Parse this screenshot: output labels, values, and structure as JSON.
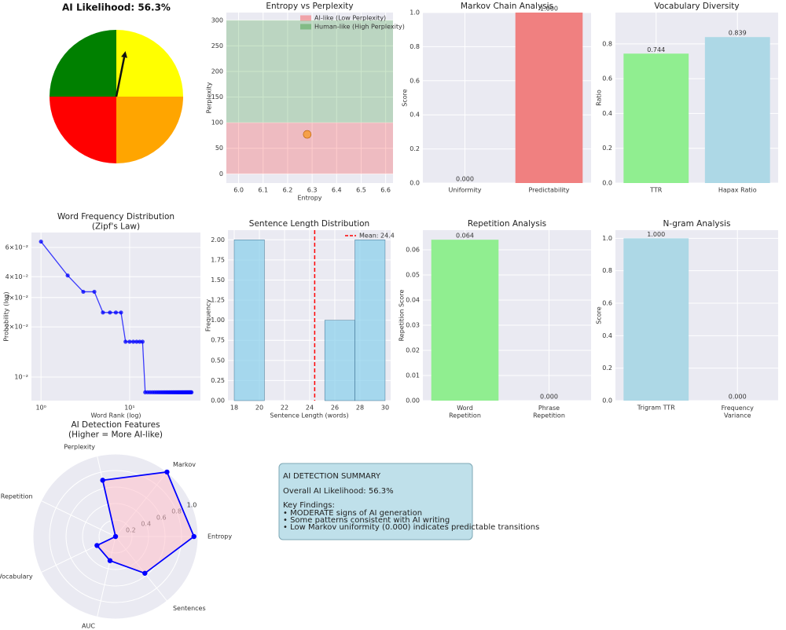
{
  "chart_data": [
    {
      "type": "gauge",
      "title": "AI Likelihood: 56.3%",
      "needle_value": 56.3,
      "range": [
        0,
        100
      ],
      "segments": {
        "values": [
          25,
          25,
          25,
          25
        ],
        "colors": [
          "yellow",
          "orange",
          "red",
          "green"
        ]
      }
    },
    {
      "type": "scatter",
      "title": "Entropy vs Perplexity",
      "x_label": "Entropy",
      "y_label": "Perplexity",
      "x": [
        6.28
      ],
      "values": [
        77
      ],
      "color": "#f5a04a",
      "bands": [
        {
          "name": "AI-like (Low Perplexity)",
          "range": [
            0,
            100
          ],
          "color": "red"
        },
        {
          "name": "Human-like (High Perplexity)",
          "range": [
            100,
            300
          ],
          "color": "green"
        }
      ],
      "xlim": [
        5.95,
        6.63
      ],
      "ylim": [
        -18,
        315
      ],
      "xticks": [
        {
          "value": 6,
          "label": "6.0"
        },
        6.1,
        6.2,
        6.3,
        6.4,
        6.5,
        6.6
      ],
      "yticks": [
        0,
        50,
        100,
        150,
        200,
        250,
        300
      ],
      "legend": "upper right",
      "grid": true
    },
    {
      "type": "bar",
      "title": "Markov Chain Analysis",
      "y_label": "Score",
      "categories": [
        "Uniformity",
        "Predictability"
      ],
      "values": [
        0,
        1
      ],
      "value_labels": [
        "0.000",
        "1.000"
      ],
      "colors": [
        "lightblue",
        "lightcoral"
      ],
      "ylim": [
        0,
        1
      ],
      "yticks": [
        {
          "value": 0,
          "label": "0.0"
        },
        0.2,
        0.4,
        0.6,
        0.8,
        {
          "value": 1,
          "label": "1.0"
        }
      ],
      "grid": true
    },
    {
      "type": "bar",
      "title": "Vocabulary Diversity",
      "y_label": "Ratio",
      "categories": [
        "TTR",
        "Hapax Ratio"
      ],
      "values": [
        0.744,
        0.839
      ],
      "colors": [
        "lightgreen",
        "lightblue"
      ],
      "ylim": [
        0,
        0.98
      ],
      "yticks": [
        {
          "value": 0,
          "label": "0.0"
        },
        0.2,
        0.4,
        0.6,
        0.8
      ],
      "grid": true
    },
    {
      "type": "line",
      "title": "Word Frequency Distribution\n(Zipf's Law)",
      "x_label": "Word Rank (log)",
      "y_label": "Probability (log)",
      "x": [
        1,
        2,
        3,
        4,
        5,
        6,
        7,
        8,
        9,
        10,
        11,
        12,
        13,
        14,
        15,
        16,
        17,
        18,
        19,
        20,
        21,
        22,
        23,
        24,
        25,
        26,
        27,
        28,
        29,
        30,
        31,
        32,
        33,
        34,
        35,
        36,
        37,
        38,
        39,
        40,
        41,
        42,
        43,
        44,
        45,
        46,
        47,
        48,
        49,
        50
      ],
      "values": [
        0.065,
        0.0407,
        0.0325,
        0.0325,
        0.0244,
        0.0244,
        0.0244,
        0.0244,
        0.0163,
        0.0163,
        0.0163,
        0.0163,
        0.0163,
        0.0163,
        0.0081,
        0.0081,
        0.0081,
        0.0081,
        0.0081,
        0.0081,
        0.0081,
        0.0081,
        0.0081,
        0.0081,
        0.0081,
        0.0081,
        0.0081,
        0.0081,
        0.0081,
        0.0081,
        0.0081,
        0.0081,
        0.0081,
        0.0081,
        0.0081,
        0.0081,
        0.0081,
        0.0081,
        0.0081,
        0.0081,
        0.0081,
        0.0081,
        0.0081,
        0.0081,
        0.0081,
        0.0081,
        0.0081,
        0.0081,
        0.0081,
        0.0081
      ],
      "color": "blue",
      "log_x": true,
      "log_y": true,
      "xlim": [
        0.78,
        63
      ],
      "ylim": [
        0.00722,
        0.0737
      ],
      "xticks": [
        {
          "value": 1,
          "label": "10⁰"
        },
        {
          "value": 10,
          "label": "10¹"
        }
      ],
      "yticks": [
        {
          "value": 0.01,
          "label": "10⁻²"
        },
        {
          "value": 0.02,
          "label": "2×10⁻²"
        },
        {
          "value": 0.03,
          "label": "3×10⁻²"
        },
        {
          "value": 0.04,
          "label": "4×10⁻²"
        },
        {
          "value": 0.06,
          "label": "6×10⁻²"
        }
      ],
      "grid": true
    },
    {
      "type": "histogram",
      "title": "Sentence Length Distribution",
      "x_label": "Sentence Length (words)",
      "y_label": "Frequency",
      "bins": [
        18,
        20.4,
        22.8,
        25.2,
        27.6,
        30
      ],
      "values": [
        2,
        0,
        0,
        1,
        2
      ],
      "color": "skyblue",
      "mean": 24.4,
      "mean_label": "Mean: 24.4",
      "legend": "upper right",
      "xlim": [
        17.5,
        30.44
      ],
      "ylim": [
        0,
        2.12
      ],
      "xticks": [
        18,
        20,
        22,
        24,
        26,
        28,
        30
      ],
      "yticks": [
        {
          "value": 0,
          "label": "0.00"
        },
        0.25,
        {
          "value": 0.5,
          "label": "0.50"
        },
        0.75,
        {
          "value": 1,
          "label": "1.00"
        },
        1.25,
        {
          "value": 1.5,
          "label": "1.50"
        },
        1.75,
        {
          "value": 2,
          "label": "2.00"
        }
      ],
      "grid": true
    },
    {
      "type": "bar",
      "title": "Repetition Analysis",
      "y_label": "Repetition Score",
      "categories": [
        "Word\nRepetition",
        "Phrase\nRepetition"
      ],
      "values": [
        0.064,
        0
      ],
      "value_labels": [
        "0.064",
        "0.000"
      ],
      "colors": [
        "lightgreen",
        "lightcoral"
      ],
      "ylim": [
        0,
        0.0678
      ],
      "yticks": [
        {
          "value": 0,
          "label": "0.00"
        },
        0.01,
        0.02,
        0.03,
        0.04,
        0.05,
        0.06
      ],
      "grid": true
    },
    {
      "type": "bar",
      "title": "N-gram Analysis",
      "y_label": "Score",
      "categories": [
        "Trigram TTR",
        "Frequency\nVariance"
      ],
      "values": [
        1,
        0
      ],
      "value_labels": [
        "1.000",
        "0.000"
      ],
      "colors": [
        "lightblue",
        "lightcoral"
      ],
      "ylim": [
        0,
        1.05
      ],
      "yticks": [
        {
          "value": 0,
          "label": "0.0"
        },
        0.2,
        0.4,
        0.6,
        0.8,
        {
          "value": 1,
          "label": "1.0"
        }
      ],
      "grid": true
    },
    {
      "type": "radar",
      "title": "AI Detection Features\n(Higher = More AI-like)",
      "categories": [
        "Entropy",
        "Markov",
        "Perplexity",
        "Repetition",
        "Vocabulary",
        "AUC",
        "Sentences"
      ],
      "values": [
        0.95,
        1.0,
        0.7,
        0.0,
        0.25,
        0.3,
        0.57
      ],
      "color": "blue",
      "fill": "pink",
      "rlim": [
        0,
        1
      ],
      "rticks": [
        0.2,
        0.4,
        0.6,
        0.8,
        {
          "value": 1,
          "label": "1.0"
        }
      ]
    }
  ],
  "summary": {
    "title": "AI DETECTION SUMMARY",
    "overall": "Overall AI Likelihood: 56.3%",
    "findings_title": "Key Findings:",
    "findings": [
      "• MODERATE signs of AI generation",
      "• Some patterns consistent with AI writing",
      "• Low Markov uniformity (0.000) indicates predictable transitions"
    ]
  }
}
